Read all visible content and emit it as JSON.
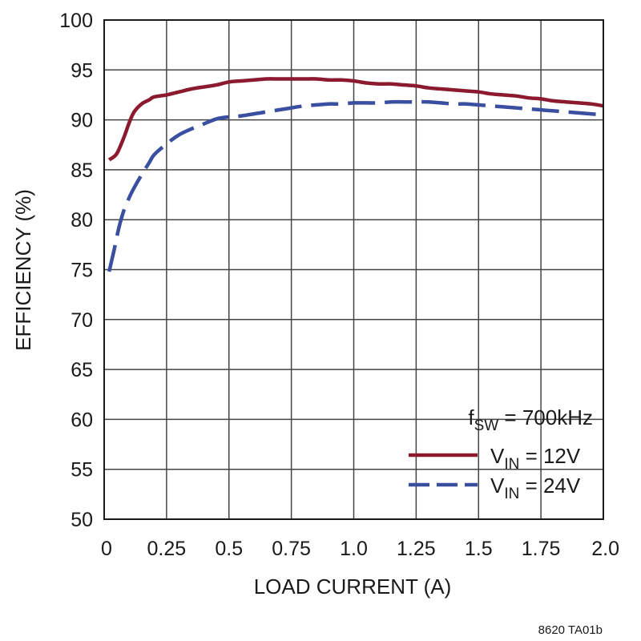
{
  "chart_data": {
    "type": "line",
    "xlabel": "LOAD CURRENT (A)",
    "ylabel": "EFFICIENCY (%)",
    "xlim": [
      0,
      2.0
    ],
    "ylim": [
      50,
      100
    ],
    "x_ticks": [
      "0",
      "0.25",
      "0.5",
      "0.75",
      "1.0",
      "1.25",
      "1.5",
      "1.75",
      "2.0"
    ],
    "y_ticks": [
      "50",
      "55",
      "60",
      "65",
      "70",
      "75",
      "80",
      "85",
      "90",
      "95",
      "100"
    ],
    "grid": true,
    "legend_placement": "bottom-right",
    "annotation": {
      "main": "f",
      "sub": "SW",
      "tail": " = 700kHz"
    },
    "series": [
      {
        "name_main": "V",
        "name_sub": "IN",
        "name_tail": " = 12V",
        "color": "#8b1a2e",
        "style": "solid",
        "x": [
          0.02,
          0.05,
          0.08,
          0.1,
          0.12,
          0.15,
          0.18,
          0.2,
          0.25,
          0.3,
          0.35,
          0.4,
          0.45,
          0.5,
          0.55,
          0.6,
          0.65,
          0.7,
          0.75,
          0.8,
          0.85,
          0.9,
          0.95,
          1.0,
          1.05,
          1.1,
          1.15,
          1.2,
          1.25,
          1.3,
          1.35,
          1.4,
          1.45,
          1.5,
          1.55,
          1.6,
          1.65,
          1.7,
          1.75,
          1.8,
          1.85,
          1.9,
          1.95,
          2.0
        ],
        "y": [
          86.0,
          86.6,
          88.3,
          89.7,
          90.8,
          91.6,
          92.0,
          92.3,
          92.5,
          92.8,
          93.1,
          93.3,
          93.5,
          93.8,
          93.9,
          94.0,
          94.1,
          94.1,
          94.1,
          94.1,
          94.1,
          94.0,
          94.0,
          93.9,
          93.7,
          93.6,
          93.6,
          93.5,
          93.4,
          93.2,
          93.1,
          93.0,
          92.9,
          92.8,
          92.6,
          92.5,
          92.4,
          92.2,
          92.1,
          91.9,
          91.8,
          91.7,
          91.6,
          91.4
        ]
      },
      {
        "name_main": "V",
        "name_sub": "IN",
        "name_tail": " = 24V",
        "color": "#3a4fa0",
        "style": "dashed",
        "x": [
          0.02,
          0.04,
          0.06,
          0.08,
          0.1,
          0.12,
          0.15,
          0.18,
          0.2,
          0.25,
          0.3,
          0.35,
          0.4,
          0.45,
          0.5,
          0.55,
          0.6,
          0.65,
          0.7,
          0.75,
          0.8,
          0.85,
          0.9,
          0.95,
          1.0,
          1.05,
          1.1,
          1.15,
          1.2,
          1.25,
          1.3,
          1.35,
          1.4,
          1.45,
          1.5,
          1.55,
          1.6,
          1.65,
          1.7,
          1.75,
          1.8,
          1.85,
          1.9,
          1.95,
          2.0
        ],
        "y": [
          74.8,
          77.0,
          79.3,
          81.0,
          82.2,
          83.2,
          84.5,
          85.7,
          86.5,
          87.6,
          88.5,
          89.1,
          89.6,
          90.1,
          90.3,
          90.4,
          90.6,
          90.8,
          91.0,
          91.2,
          91.4,
          91.5,
          91.6,
          91.6,
          91.7,
          91.7,
          91.7,
          91.8,
          91.8,
          91.8,
          91.8,
          91.7,
          91.6,
          91.6,
          91.5,
          91.4,
          91.3,
          91.2,
          91.1,
          91.0,
          90.9,
          90.8,
          90.7,
          90.6,
          90.5
        ]
      }
    ],
    "figure_code": "8620 TA01b"
  }
}
